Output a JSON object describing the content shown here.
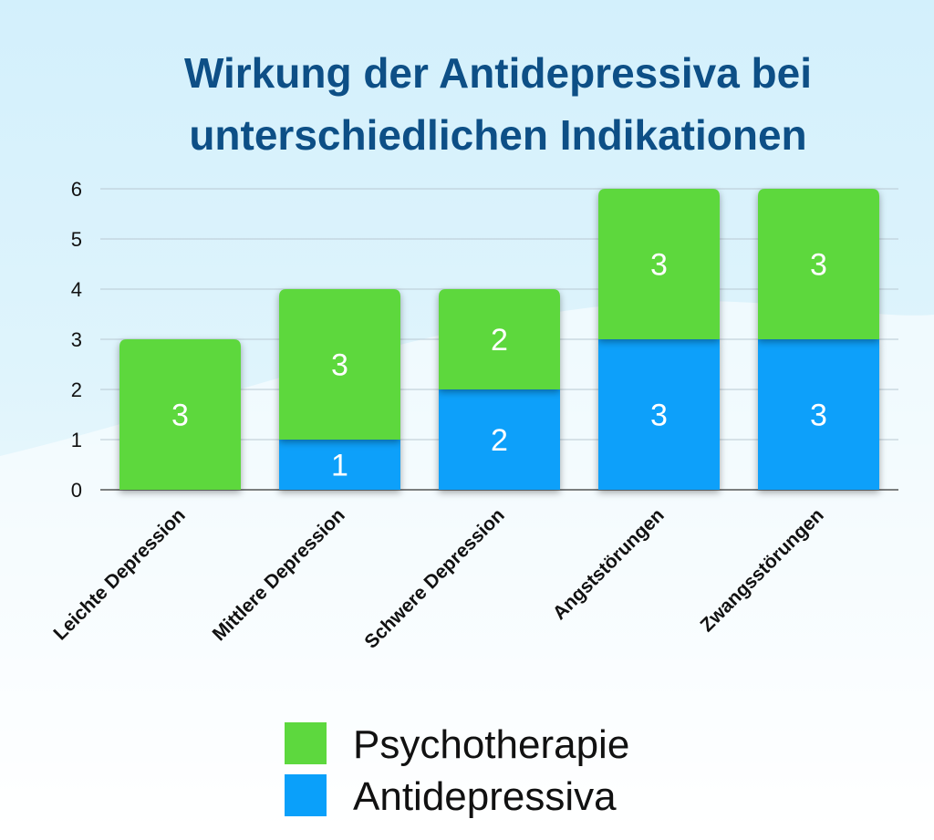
{
  "chart_data": {
    "type": "bar",
    "stacked": true,
    "title_lines": [
      "Wirkung der Antidepressiva bei",
      "unterschiedlichen Indikationen"
    ],
    "categories": [
      "Leichte Depression",
      "Mittlere Depression",
      "Schwere Depression",
      "Angststörungen",
      "Zwangsstörungen"
    ],
    "series": [
      {
        "name": "Antidepressiva",
        "color": "#0aa0fa",
        "values": [
          0,
          1,
          2,
          3,
          3
        ],
        "labels": [
          "",
          "1",
          "2",
          "3",
          "3"
        ]
      },
      {
        "name": "Psychotherapie",
        "color": "#5dd83e",
        "values": [
          3,
          3,
          2,
          3,
          3
        ],
        "labels": [
          "3",
          "3",
          "2",
          "3",
          "3"
        ]
      }
    ],
    "legend": [
      {
        "name": "Psychotherapie",
        "color": "#5dd83e"
      },
      {
        "name": "Antidepressiva",
        "color": "#0aa0fa"
      }
    ],
    "legend_position": "bottom-center",
    "ylim": [
      0,
      6
    ],
    "yticks": [
      "0",
      "1",
      "2",
      "3",
      "4",
      "5",
      "6"
    ],
    "grid": true,
    "xlabel": "",
    "ylabel": ""
  },
  "colors": {
    "title": "#0d4f86",
    "axis_text": "#111111",
    "grid": "#b9c8d2",
    "bar_label": "#ffffff",
    "bg_top": "#c9ecfb",
    "bg_bottom": "#ffffff"
  }
}
